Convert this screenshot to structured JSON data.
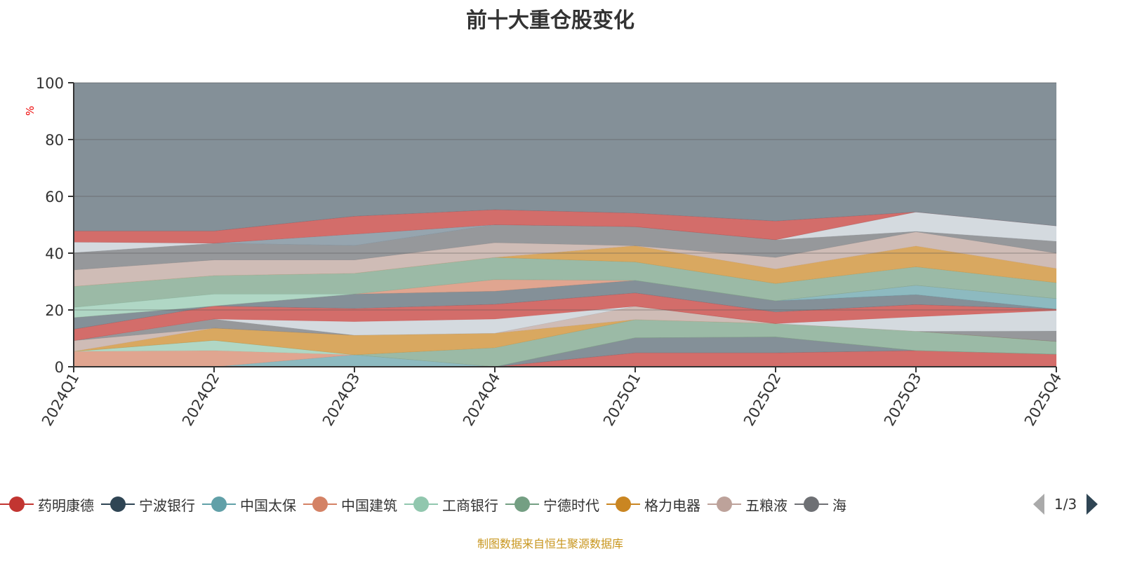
{
  "chart_data": {
    "type": "area",
    "stacked": true,
    "title": "前十大重仓股变化",
    "ylabel": "%",
    "ylim": [
      0,
      100
    ],
    "yticks": [
      0,
      20,
      40,
      60,
      80,
      100
    ],
    "categories": [
      "2024Q1",
      "2024Q2",
      "2024Q3",
      "2024Q4",
      "2025Q1",
      "2025Q2",
      "2025Q3",
      "2025Q4"
    ],
    "grid": true,
    "series": [
      {
        "color": "#c23531",
        "values": [
          0,
          0,
          0,
          0,
          4.9,
          4.9,
          5.7,
          4.4
        ]
      },
      {
        "color": "#546570",
        "values": [
          0,
          0,
          0,
          0,
          5.3,
          5.6,
          0,
          0
        ]
      },
      {
        "color": "#61a0a8",
        "values": [
          0,
          0,
          4.2,
          0,
          0,
          0,
          0,
          0
        ]
      },
      {
        "color": "#d48265",
        "values": [
          5.4,
          5.7,
          0,
          0,
          0,
          0,
          0,
          0
        ]
      },
      {
        "color": "#91c7ae",
        "values": [
          0,
          3.6,
          0,
          0,
          0,
          0,
          0,
          0
        ]
      },
      {
        "color": "#749f83",
        "values": [
          0,
          0,
          0,
          6.7,
          6.4,
          4.7,
          6.8,
          4.5
        ]
      },
      {
        "color": "#ca8622",
        "values": [
          0,
          4.3,
          6.9,
          5.1,
          0,
          0,
          0,
          0
        ]
      },
      {
        "color": "#bda29a",
        "values": [
          3.8,
          0,
          0,
          0,
          4.7,
          0,
          0,
          0
        ]
      },
      {
        "color": "#6e7074",
        "values": [
          0,
          3.2,
          0,
          0,
          0,
          0,
          0,
          3.7
        ]
      },
      {
        "color": "#c4ccd3",
        "values": [
          0,
          0,
          4.8,
          5.0,
          0,
          0,
          5.1,
          7.2
        ]
      },
      {
        "color": "#c23531",
        "values": [
          4.0,
          4.6,
          4.6,
          5.2,
          4.7,
          4.1,
          4.3,
          0.5
        ]
      },
      {
        "color": "#546570",
        "values": [
          4.1,
          0,
          5.1,
          4.6,
          4.4,
          3.9,
          3.5,
          0
        ]
      },
      {
        "color": "#61a0a8",
        "values": [
          0,
          0,
          0,
          0,
          0,
          0,
          3.3,
          3.7
        ]
      },
      {
        "color": "#d48265",
        "values": [
          0,
          0,
          0,
          4.1,
          0,
          0,
          0,
          0
        ]
      },
      {
        "color": "#91c7ae",
        "values": [
          3.6,
          4.2,
          0,
          0,
          0,
          0,
          0,
          0
        ]
      },
      {
        "color": "#749f83",
        "values": [
          7.4,
          6.5,
          7.3,
          7.8,
          6.5,
          6.1,
          6.5,
          5.6
        ]
      },
      {
        "color": "#ca8622",
        "values": [
          0,
          0,
          0,
          0,
          5.7,
          5.1,
          7.3,
          5.0
        ]
      },
      {
        "color": "#bda29a",
        "values": [
          5.8,
          5.5,
          4.7,
          5.2,
          0,
          4.1,
          5.0,
          5.4
        ]
      },
      {
        "color": "#6e7074",
        "values": [
          6.1,
          5.9,
          5.1,
          6.3,
          6.7,
          6.2,
          0.2,
          4.2
        ]
      },
      {
        "color": "#c4ccd3",
        "values": [
          3.7,
          0,
          0,
          0,
          0,
          0,
          6.8,
          5.4
        ]
      },
      {
        "color": "#6e8290",
        "values": [
          0,
          0,
          4.0,
          0,
          0,
          0,
          0,
          0
        ]
      },
      {
        "color": "#c23531",
        "values": [
          3.9,
          4.3,
          6.3,
          5.3,
          4.8,
          6.6,
          0,
          0
        ]
      },
      {
        "color": "#546570",
        "values": [
          52.2,
          52.2,
          47.0,
          44.7,
          45.9,
          48.7,
          45.7,
          50.4
        ]
      }
    ]
  },
  "legend": {
    "items": [
      {
        "label": "药明康德",
        "color": "#c23531"
      },
      {
        "label": "宁波银行",
        "color": "#2f4554"
      },
      {
        "label": "中国太保",
        "color": "#61a0a8"
      },
      {
        "label": "中国建筑",
        "color": "#d48265"
      },
      {
        "label": "工商银行",
        "color": "#91c7ae"
      },
      {
        "label": "宁德时代",
        "color": "#749f83"
      },
      {
        "label": "格力电器",
        "color": "#ca8622"
      },
      {
        "label": "五粮液",
        "color": "#bda29a"
      },
      {
        "label": "海",
        "color": "#6e7074"
      }
    ],
    "page": "1/3"
  },
  "footer": "制图数据来自恒生聚源数据库"
}
